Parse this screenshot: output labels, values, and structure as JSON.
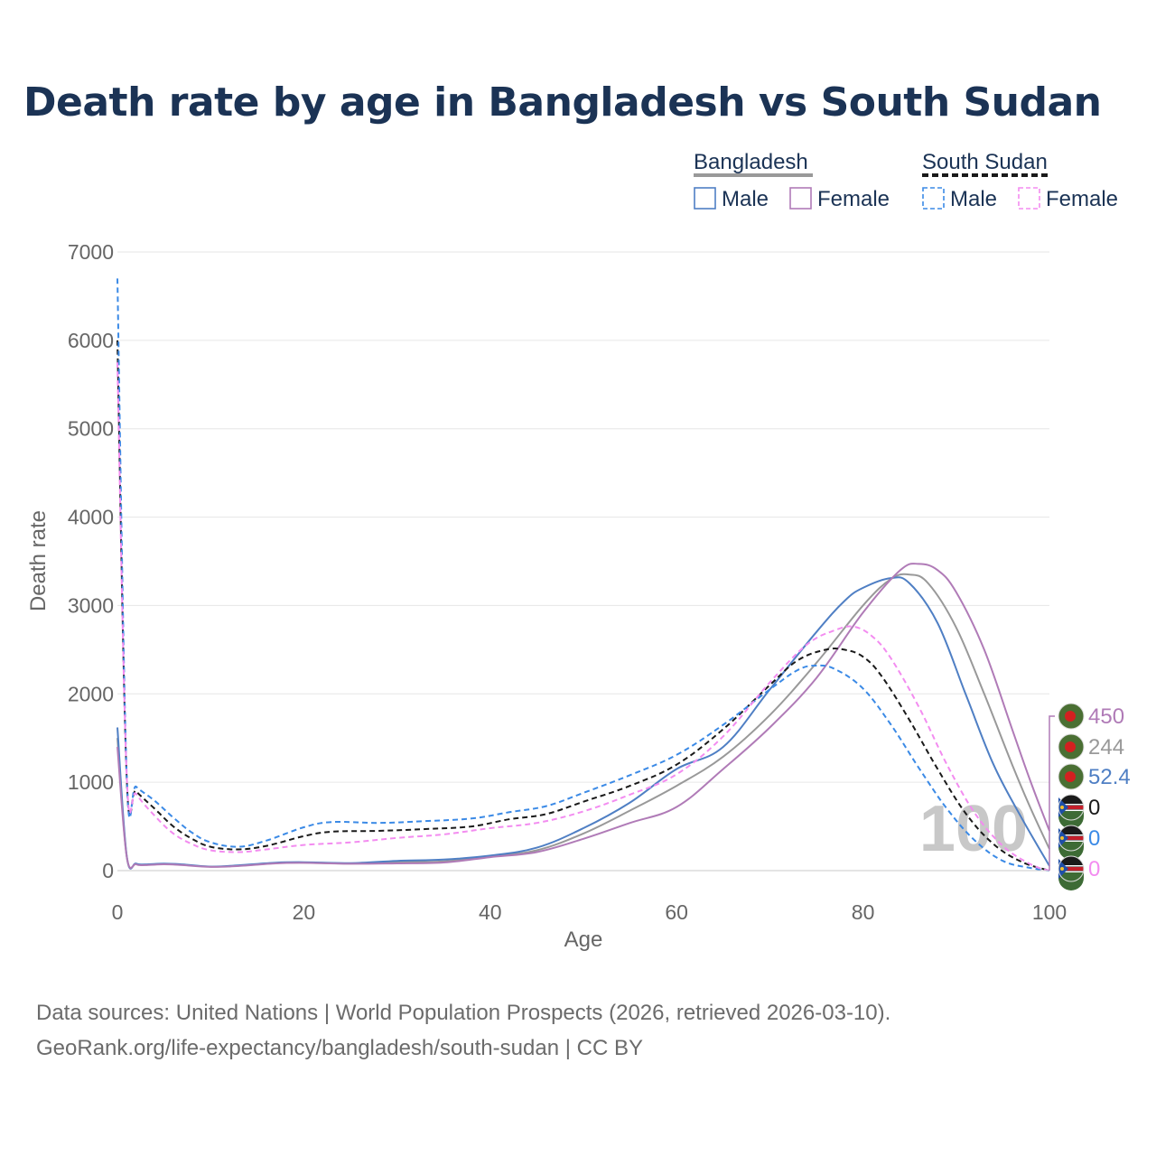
{
  "title": "Death rate by age in Bangladesh vs South Sudan",
  "footer": {
    "source": "Data sources: United Nations | World Population Prospects (2026, retrieved 2026-03-10).",
    "url": "GeoRank.org/life-expectancy/bangladesh/south-sudan | CC BY"
  },
  "legend": {
    "groups": [
      {
        "country": "Bangladesh",
        "style": "solid",
        "color": "#999999",
        "items": [
          {
            "label": "Male",
            "color": "#4f7fc4"
          },
          {
            "label": "Female",
            "color": "#b07bb7"
          }
        ]
      },
      {
        "country": "South Sudan",
        "style": "dashed",
        "color": "#1a1a1a",
        "items": [
          {
            "label": "Male",
            "color": "#3b8ae6"
          },
          {
            "label": "Female",
            "color": "#f38cf0"
          }
        ]
      }
    ]
  },
  "age_marker": "100",
  "chart_data": {
    "type": "line",
    "title": "Death rate by age in Bangladesh vs South Sudan",
    "xlabel": "Age",
    "ylabel": "Death rate",
    "xlim": [
      0,
      100
    ],
    "ylim": [
      0,
      7000
    ],
    "xticks": [
      0,
      20,
      40,
      60,
      80,
      100
    ],
    "yticks": [
      0,
      1000,
      2000,
      3000,
      4000,
      5000,
      6000,
      7000
    ],
    "grid": true,
    "legend_position": "top-right",
    "series": [
      {
        "name": "Bangladesh Total",
        "country": "Bangladesh",
        "sex": "Total",
        "color": "#999999",
        "dash": false,
        "end_label": "244",
        "points": [
          [
            0,
            1500
          ],
          [
            1,
            160
          ],
          [
            2,
            75
          ],
          [
            3,
            65
          ],
          [
            5,
            75
          ],
          [
            7,
            65
          ],
          [
            10,
            45
          ],
          [
            13,
            55
          ],
          [
            17,
            85
          ],
          [
            20,
            90
          ],
          [
            25,
            80
          ],
          [
            30,
            95
          ],
          [
            35,
            105
          ],
          [
            40,
            160
          ],
          [
            45,
            230
          ],
          [
            50,
            420
          ],
          [
            55,
            680
          ],
          [
            60,
            960
          ],
          [
            65,
            1290
          ],
          [
            70,
            1760
          ],
          [
            75,
            2350
          ],
          [
            80,
            3000
          ],
          [
            83,
            3300
          ],
          [
            85,
            3350
          ],
          [
            87,
            3250
          ],
          [
            90,
            2750
          ],
          [
            93,
            2000
          ],
          [
            96,
            1200
          ],
          [
            98,
            700
          ],
          [
            100,
            244
          ]
        ]
      },
      {
        "name": "Bangladesh Male",
        "country": "Bangladesh",
        "sex": "Male",
        "color": "#4f7fc4",
        "dash": false,
        "end_label": "52.4",
        "points": [
          [
            0,
            1620
          ],
          [
            1,
            170
          ],
          [
            2,
            80
          ],
          [
            3,
            70
          ],
          [
            5,
            80
          ],
          [
            7,
            70
          ],
          [
            10,
            45
          ],
          [
            13,
            60
          ],
          [
            17,
            90
          ],
          [
            20,
            95
          ],
          [
            25,
            85
          ],
          [
            30,
            110
          ],
          [
            35,
            125
          ],
          [
            40,
            170
          ],
          [
            45,
            260
          ],
          [
            50,
            480
          ],
          [
            55,
            770
          ],
          [
            60,
            1150
          ],
          [
            65,
            1400
          ],
          [
            70,
            2050
          ],
          [
            75,
            2700
          ],
          [
            78,
            3050
          ],
          [
            80,
            3200
          ],
          [
            83,
            3310
          ],
          [
            85,
            3250
          ],
          [
            88,
            2800
          ],
          [
            91,
            2000
          ],
          [
            94,
            1200
          ],
          [
            97,
            600
          ],
          [
            100,
            52.4
          ]
        ]
      },
      {
        "name": "Bangladesh Female",
        "country": "Bangladesh",
        "sex": "Female",
        "color": "#b07bb7",
        "dash": false,
        "end_label": "450",
        "points": [
          [
            0,
            1400
          ],
          [
            1,
            160
          ],
          [
            2,
            72
          ],
          [
            3,
            62
          ],
          [
            5,
            72
          ],
          [
            7,
            62
          ],
          [
            10,
            42
          ],
          [
            13,
            52
          ],
          [
            17,
            82
          ],
          [
            20,
            88
          ],
          [
            25,
            78
          ],
          [
            30,
            82
          ],
          [
            35,
            92
          ],
          [
            40,
            152
          ],
          [
            45,
            210
          ],
          [
            50,
            360
          ],
          [
            55,
            540
          ],
          [
            60,
            720
          ],
          [
            65,
            1150
          ],
          [
            70,
            1620
          ],
          [
            75,
            2180
          ],
          [
            80,
            2920
          ],
          [
            84,
            3400
          ],
          [
            86,
            3470
          ],
          [
            88,
            3400
          ],
          [
            90,
            3150
          ],
          [
            93,
            2500
          ],
          [
            96,
            1600
          ],
          [
            98,
            1000
          ],
          [
            100,
            450
          ]
        ]
      },
      {
        "name": "South Sudan Total",
        "country": "South Sudan",
        "sex": "Total",
        "color": "#1a1a1a",
        "dash": true,
        "end_label": "0",
        "points": [
          [
            0,
            6000
          ],
          [
            1,
            1050
          ],
          [
            2,
            900
          ],
          [
            4,
            700
          ],
          [
            6,
            500
          ],
          [
            8,
            360
          ],
          [
            10,
            270
          ],
          [
            13,
            240
          ],
          [
            16,
            280
          ],
          [
            20,
            390
          ],
          [
            23,
            440
          ],
          [
            28,
            450
          ],
          [
            33,
            470
          ],
          [
            38,
            500
          ],
          [
            42,
            580
          ],
          [
            46,
            640
          ],
          [
            50,
            780
          ],
          [
            55,
            960
          ],
          [
            60,
            1200
          ],
          [
            65,
            1600
          ],
          [
            70,
            2100
          ],
          [
            73,
            2380
          ],
          [
            76,
            2500
          ],
          [
            78,
            2500
          ],
          [
            80,
            2420
          ],
          [
            82,
            2200
          ],
          [
            85,
            1700
          ],
          [
            88,
            1150
          ],
          [
            91,
            650
          ],
          [
            94,
            300
          ],
          [
            97,
            100
          ],
          [
            100,
            0
          ]
        ]
      },
      {
        "name": "South Sudan Male",
        "country": "South Sudan",
        "sex": "Male",
        "color": "#3b8ae6",
        "dash": true,
        "end_label": "0",
        "points": [
          [
            0,
            6700
          ],
          [
            1,
            1080
          ],
          [
            2,
            950
          ],
          [
            4,
            790
          ],
          [
            6,
            600
          ],
          [
            8,
            430
          ],
          [
            10,
            320
          ],
          [
            13,
            270
          ],
          [
            16,
            340
          ],
          [
            20,
            490
          ],
          [
            23,
            550
          ],
          [
            28,
            540
          ],
          [
            33,
            560
          ],
          [
            38,
            590
          ],
          [
            42,
            660
          ],
          [
            46,
            730
          ],
          [
            50,
            880
          ],
          [
            55,
            1080
          ],
          [
            60,
            1310
          ],
          [
            65,
            1650
          ],
          [
            70,
            2050
          ],
          [
            73,
            2270
          ],
          [
            75,
            2320
          ],
          [
            77,
            2280
          ],
          [
            80,
            2060
          ],
          [
            83,
            1650
          ],
          [
            86,
            1160
          ],
          [
            89,
            700
          ],
          [
            92,
            340
          ],
          [
            95,
            110
          ],
          [
            98,
            30
          ],
          [
            100,
            0
          ]
        ]
      },
      {
        "name": "South Sudan Female",
        "country": "South Sudan",
        "sex": "Female",
        "color": "#f38cf0",
        "dash": true,
        "end_label": "0",
        "points": [
          [
            0,
            5750
          ],
          [
            1,
            1080
          ],
          [
            2,
            870
          ],
          [
            4,
            620
          ],
          [
            6,
            420
          ],
          [
            8,
            300
          ],
          [
            10,
            230
          ],
          [
            13,
            210
          ],
          [
            16,
            240
          ],
          [
            20,
            290
          ],
          [
            25,
            320
          ],
          [
            30,
            370
          ],
          [
            35,
            410
          ],
          [
            40,
            480
          ],
          [
            45,
            540
          ],
          [
            50,
            670
          ],
          [
            55,
            860
          ],
          [
            60,
            1090
          ],
          [
            65,
            1520
          ],
          [
            70,
            2130
          ],
          [
            74,
            2560
          ],
          [
            77,
            2720
          ],
          [
            79,
            2760
          ],
          [
            81,
            2650
          ],
          [
            83,
            2400
          ],
          [
            86,
            1850
          ],
          [
            89,
            1200
          ],
          [
            92,
            650
          ],
          [
            95,
            280
          ],
          [
            98,
            70
          ],
          [
            100,
            0
          ]
        ]
      }
    ]
  }
}
